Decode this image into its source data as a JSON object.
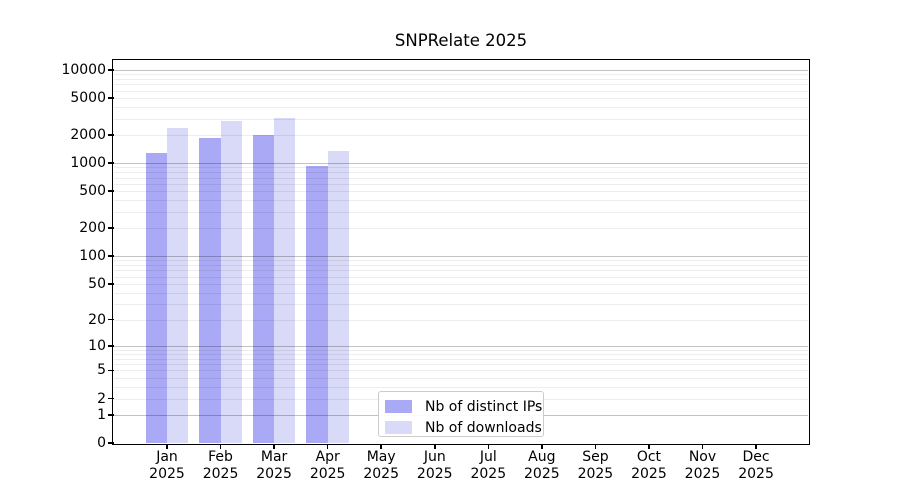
{
  "title": "SNPRelate 2025",
  "colors": {
    "distinct_ips": "#a9a9f5",
    "downloads": "#d9d9f8",
    "axis": "#000000",
    "grid_minor": "#ececec",
    "grid_major": "#c2c2c2",
    "legend_border": "#cccccc"
  },
  "chart_data": {
    "type": "bar",
    "title": "SNPRelate 2025",
    "xlabel": "",
    "ylabel": "",
    "y_scale": "log(1+x)",
    "ylim": [
      0,
      12500
    ],
    "grid": true,
    "legend_position": "bottom-center-left inside plot",
    "y_tick_values": [
      0,
      1,
      2,
      5,
      10,
      20,
      50,
      100,
      200,
      500,
      1000,
      2000,
      5000,
      10000
    ],
    "categories": [
      {
        "month": "Jan",
        "year": "2025"
      },
      {
        "month": "Feb",
        "year": "2025"
      },
      {
        "month": "Mar",
        "year": "2025"
      },
      {
        "month": "Apr",
        "year": "2025"
      },
      {
        "month": "May",
        "year": "2025"
      },
      {
        "month": "Jun",
        "year": "2025"
      },
      {
        "month": "Jul",
        "year": "2025"
      },
      {
        "month": "Aug",
        "year": "2025"
      },
      {
        "month": "Sep",
        "year": "2025"
      },
      {
        "month": "Oct",
        "year": "2025"
      },
      {
        "month": "Nov",
        "year": "2025"
      },
      {
        "month": "Dec",
        "year": "2025"
      }
    ],
    "series": [
      {
        "name": "Nb of distinct IPs",
        "key": "distinct_ips",
        "color": "#a9a9f5",
        "values": [
          1300,
          1870,
          2000,
          930,
          null,
          null,
          null,
          null,
          null,
          null,
          null,
          null
        ]
      },
      {
        "name": "Nb of downloads",
        "key": "downloads",
        "color": "#d9d9f8",
        "values": [
          2400,
          2840,
          3050,
          1350,
          null,
          null,
          null,
          null,
          null,
          null,
          null,
          null
        ]
      }
    ]
  }
}
